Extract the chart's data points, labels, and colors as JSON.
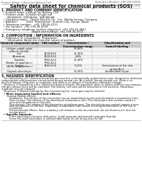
{
  "bg_color": "#ffffff",
  "header_top_left": "Product Name: Lithium Ion Battery Cell",
  "header_top_right": "Substance Number: SER-049-00010\nEstablished / Revision: Dec.7.2010",
  "title": "Safety data sheet for chemical products (SDS)",
  "section1_title": "1. PRODUCT AND COMPANY IDENTIFICATION",
  "section1_lines": [
    "  • Product name: Lithium Ion Battery Cell",
    "  • Product code: Cylindrical type cell",
    "      IXR18650U, IXR18650L, IXR18650A",
    "  • Company name:    Sanyo Electric Co., Ltd., Mobile Energy Company",
    "  • Address:          2001  Kamitakami, Sumoto-City, Hyogo, Japan",
    "  • Telephone number:   +81-799-26-4111",
    "  • Fax number:  +81-799-26-4129",
    "  • Emergency telephone number (daytime): +81-799-26-3842",
    "                                  (Night and holiday): +81-799-26-4101"
  ],
  "section2_title": "2. COMPOSITION / INFORMATION ON INGREDIENTS",
  "section2_intro": "  • Substance or preparation: Preparation",
  "section2_sub": "    • Information about the chemical nature of product:",
  "table_col_names": [
    "Chemical component name",
    "CAS number",
    "Concentration /\nConcentration range",
    "Classification and\nhazard labeling"
  ],
  "table_rows": [
    [
      "Lithium cobalt oxide\n(LiMn-Co-Ni-O4)",
      "-",
      "30-60%",
      "-"
    ],
    [
      "Iron",
      "7439-89-6",
      "15-30%",
      "-"
    ],
    [
      "Aluminum",
      "7429-90-5",
      "2-8%",
      "-"
    ],
    [
      "Graphite\n(Binder in graphite=)\n(Al-Mn as graphite=)",
      "7782-42-5\n7782-44-2",
      "10-20%",
      "-"
    ],
    [
      "Copper",
      "7440-50-8",
      "5-15%",
      "Sensitization of the skin\ngroup No.2"
    ],
    [
      "Organic electrolyte",
      "-",
      "10-20%",
      "Inflammable liquid"
    ]
  ],
  "section3_title": "3. HAZARDS IDENTIFICATION",
  "section3_para": [
    "   For the battery cell, chemical materials are stored in a hermetically sealed metal case, designed to withstand",
    "temperatures and pressures encountered during normal use. As a result, during normal use, there is no",
    "physical danger of ignition or explosion and there is no danger of hazardous materials leakage.",
    "   However, if exposed to a fire, added mechanical shocks, decomposed, wires or alarms without any measure,",
    "the gas release valve will be operated. The battery cell case will be breached at the extreme. Hazardous",
    "materials may be released.",
    "   Moreover, if heated strongly by the surrounding fire, some gas may be emitted."
  ],
  "section3_bullet1": "  • Most important hazard and effects:",
  "section3_health": "      Human health effects:",
  "section3_health_lines": [
    "          Inhalation: The release of the electrolyte has an anaesthesia action and stimulates a respiratory tract.",
    "          Skin contact: The release of the electrolyte stimulates a skin. The electrolyte skin contact causes a",
    "          sore and stimulation on the skin.",
    "          Eye contact: The release of the electrolyte stimulates eyes. The electrolyte eye contact causes a sore",
    "          and stimulation on the eye. Especially, a substance that causes a strong inflammation of the eye is",
    "          contained.",
    "          Environmental effects: Since a battery cell remains in the environment, do not throw out it into the",
    "          environment."
  ],
  "section3_bullet2": "  • Specific hazards:",
  "section3_specific": [
    "          If the electrolyte contacts with water, it will generate detrimental hydrogen fluoride.",
    "          Since the used electrolyte is inflammable liquid, do not bring close to fire."
  ]
}
